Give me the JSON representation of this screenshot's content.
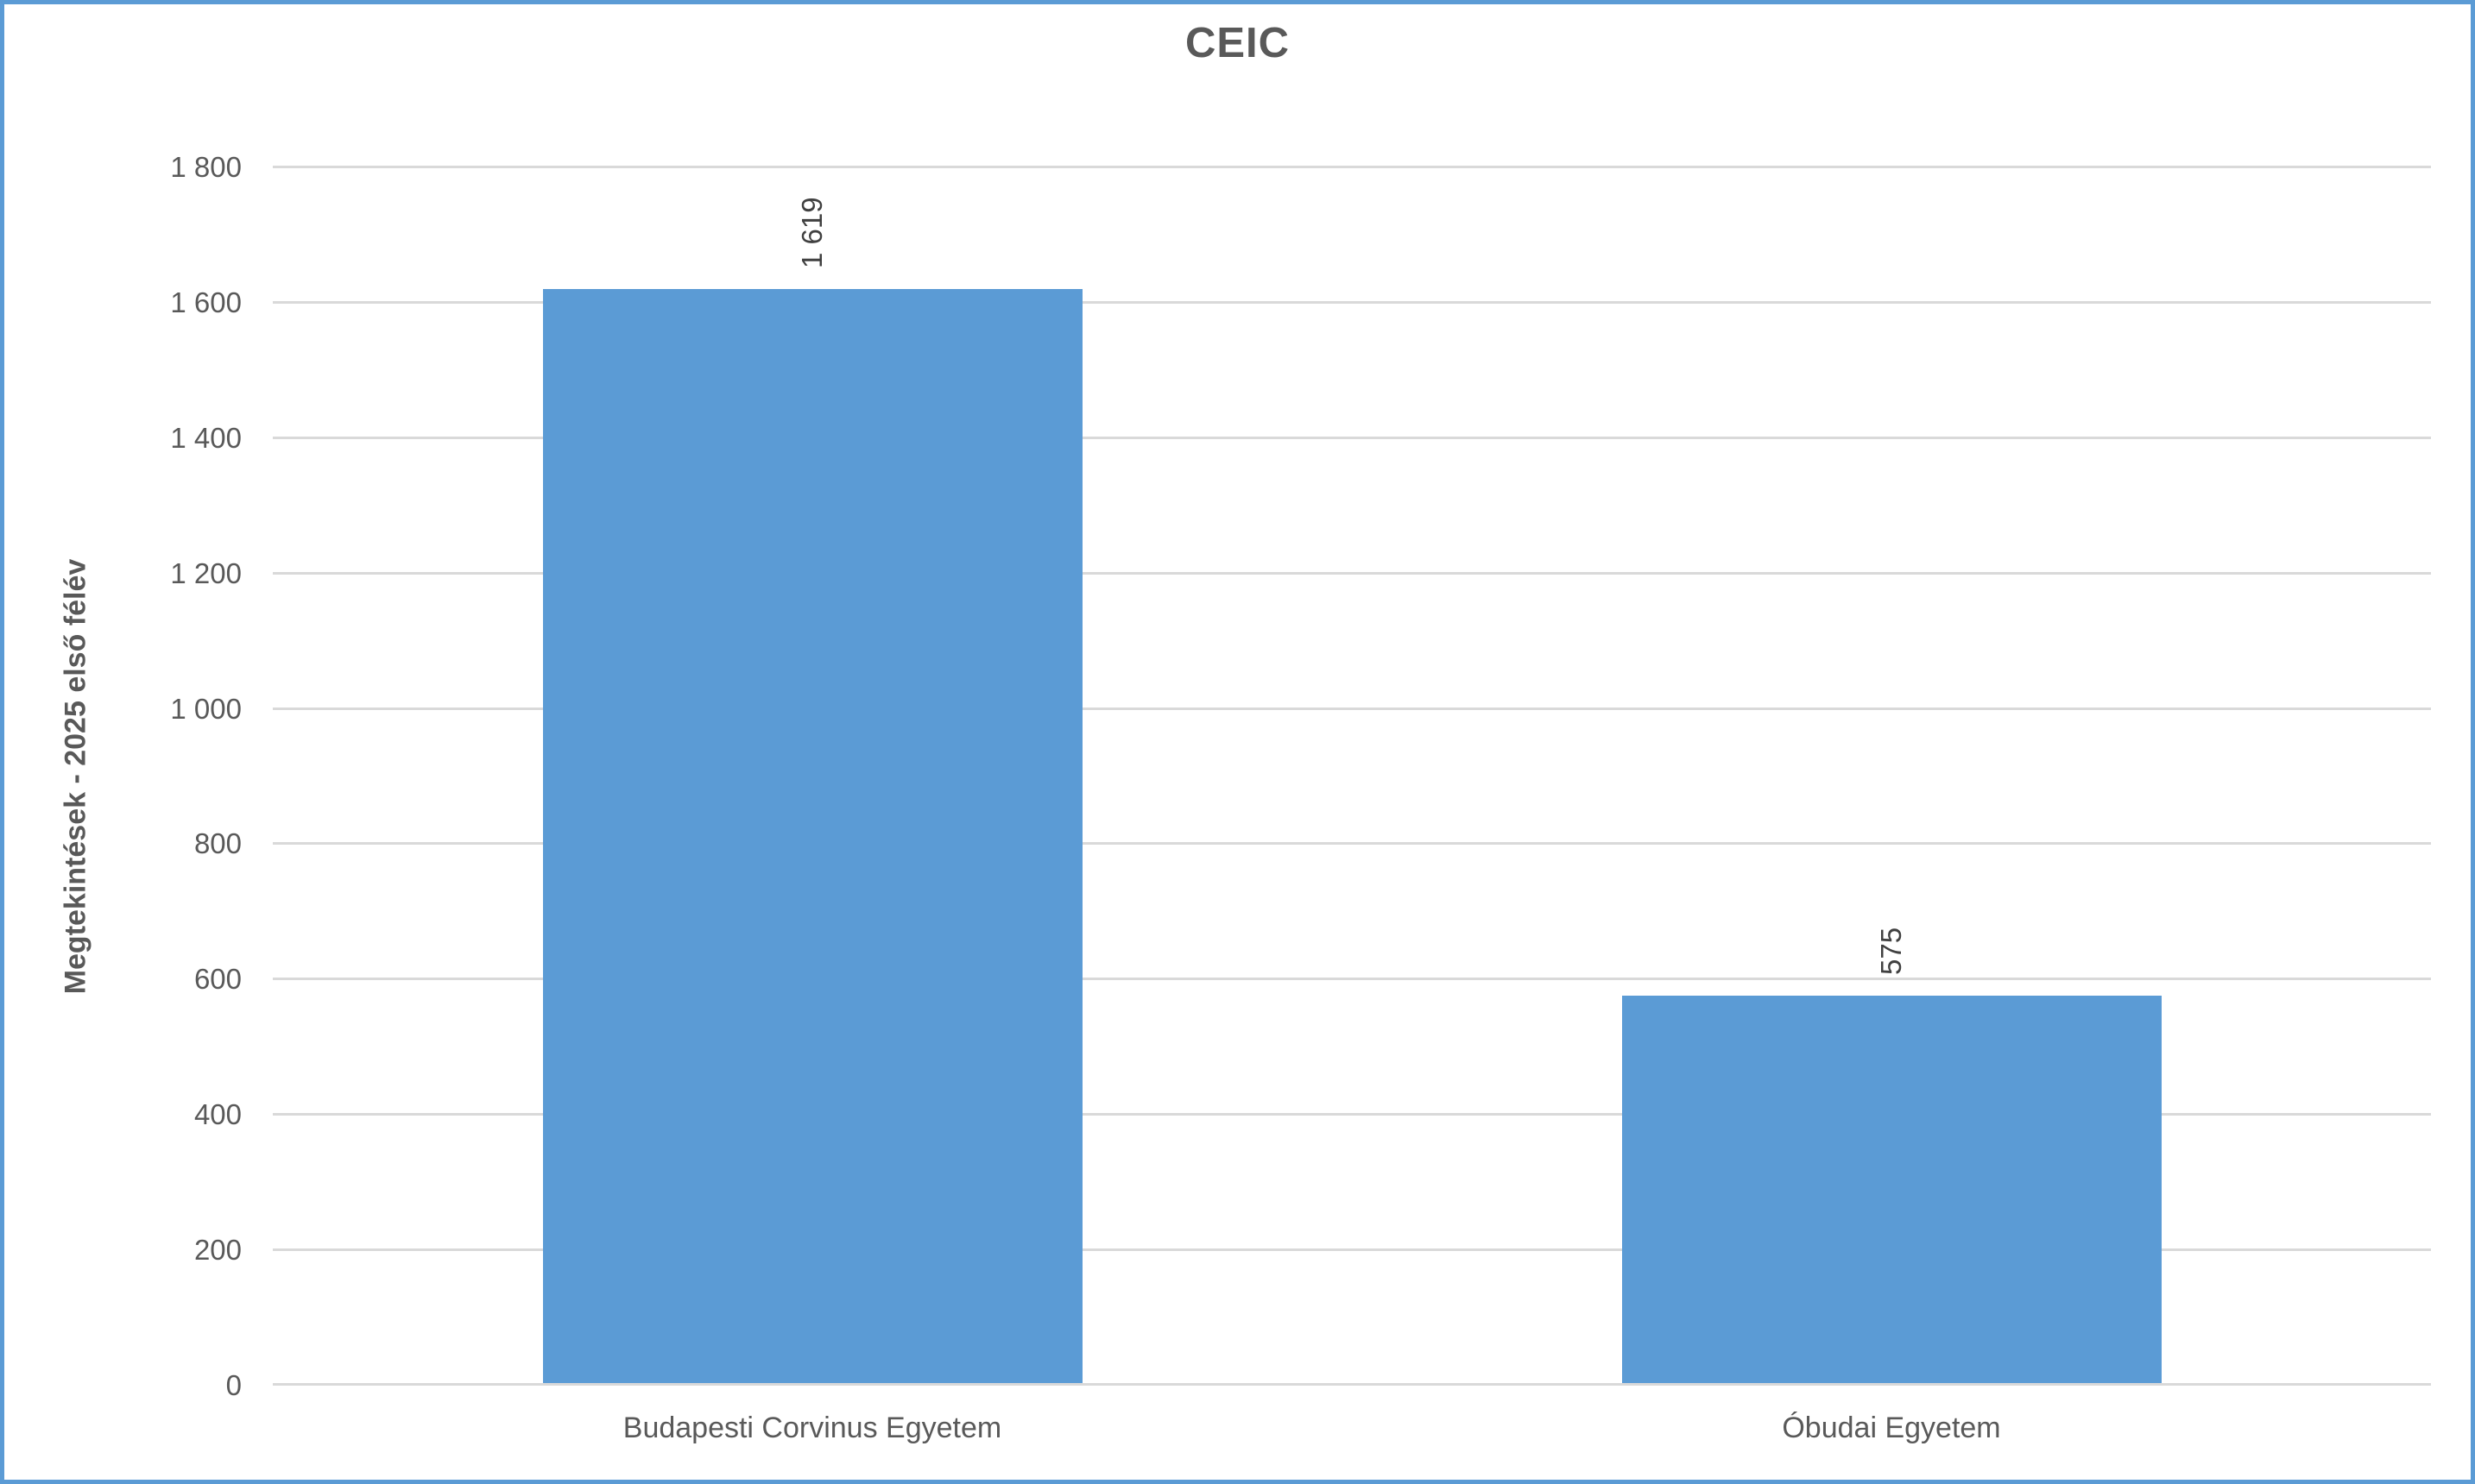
{
  "page": {
    "background": "#ffffff",
    "frame_border_color": "#5B9BD5"
  },
  "chart_data": {
    "type": "bar",
    "title": "CEIC",
    "xlabel": "",
    "ylabel": "Megtekintések - 2025 első félév",
    "categories": [
      "Budapesti Corvinus Egyetem",
      "Óbudai Egyetem"
    ],
    "values": [
      1619,
      575
    ],
    "value_labels": [
      "1 619",
      "575"
    ],
    "value_label_rotation_deg": 90,
    "ylim": [
      0,
      1800
    ],
    "ytick_interval": 200,
    "ytick_labels": [
      "0",
      "200",
      "400",
      "600",
      "800",
      "1 000",
      "1 200",
      "1 400",
      "1 600",
      "1 800"
    ],
    "grid": "horizontal",
    "legend_position": "none",
    "bar_color": "#5B9BD5",
    "gridline_color": "#D9D9D9",
    "axis_line_color": "#D9D9D9",
    "title_color": "#595959",
    "tick_label_color": "#595959",
    "category_label_color": "#595959",
    "value_label_color": "#404040"
  }
}
